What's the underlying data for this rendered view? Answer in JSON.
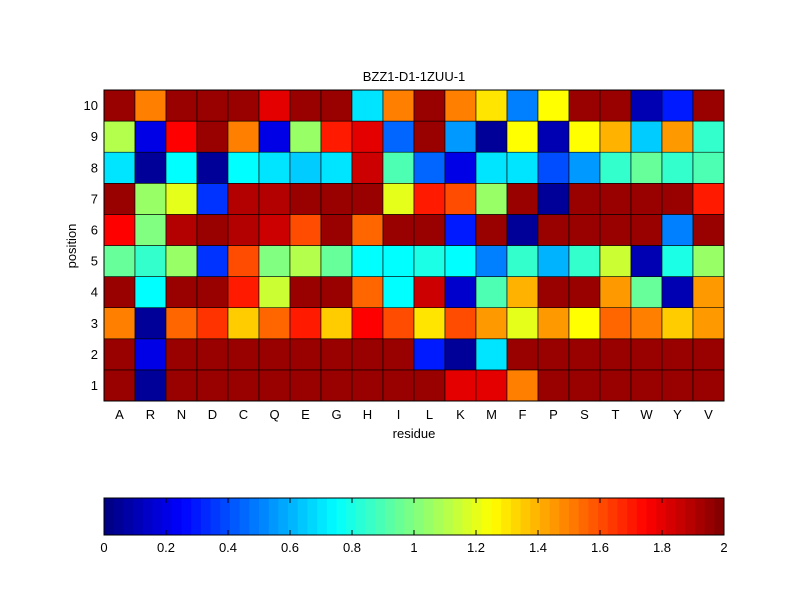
{
  "chart_data": {
    "type": "heatmap",
    "title": "BZZ1-D1-1ZUU-1",
    "xlabel": "residue",
    "ylabel": "position",
    "x_categories": [
      "A",
      "R",
      "N",
      "D",
      "C",
      "Q",
      "E",
      "G",
      "H",
      "I",
      "L",
      "K",
      "M",
      "F",
      "P",
      "S",
      "T",
      "W",
      "Y",
      "V"
    ],
    "y_categories": [
      "1",
      "2",
      "3",
      "4",
      "5",
      "6",
      "7",
      "8",
      "9",
      "10"
    ],
    "colorscale": "jet",
    "clim": [
      0,
      2
    ],
    "colorbar_ticks": [
      "0",
      "0.2",
      "0.4",
      "0.6",
      "0.8",
      "1",
      "1.2",
      "1.4",
      "1.6",
      "1.8",
      "2"
    ],
    "colorbar_position": "bottom",
    "grid": true,
    "values": [
      [
        1.95,
        0.05,
        1.95,
        1.95,
        1.95,
        1.95,
        1.95,
        1.95,
        1.95,
        1.95,
        1.95,
        1.8,
        1.8,
        1.5,
        1.95,
        1.95,
        1.95,
        1.95,
        1.95,
        1.95
      ],
      [
        1.95,
        0.2,
        1.95,
        1.95,
        1.95,
        1.95,
        1.95,
        1.95,
        1.95,
        1.95,
        0.3,
        0.05,
        0.7,
        1.95,
        1.95,
        1.95,
        1.95,
        1.95,
        1.95,
        1.95
      ],
      [
        1.5,
        0.05,
        1.55,
        1.65,
        1.35,
        1.55,
        1.7,
        1.35,
        1.75,
        1.6,
        1.3,
        1.6,
        1.45,
        1.2,
        1.45,
        1.25,
        1.55,
        1.5,
        1.35,
        1.45
      ],
      [
        1.95,
        0.75,
        1.95,
        1.95,
        1.7,
        1.15,
        1.95,
        1.95,
        1.55,
        0.75,
        1.85,
        0.15,
        0.9,
        1.4,
        1.95,
        1.95,
        1.45,
        0.95,
        0.1,
        1.45
      ],
      [
        0.95,
        0.85,
        1.05,
        0.35,
        1.6,
        1.0,
        1.1,
        0.95,
        0.75,
        0.75,
        0.8,
        0.75,
        0.5,
        0.85,
        0.6,
        0.85,
        1.15,
        0.1,
        0.8,
        1.05
      ],
      [
        1.75,
        1.0,
        1.9,
        1.95,
        1.9,
        1.85,
        1.6,
        1.95,
        1.55,
        1.95,
        1.95,
        0.3,
        1.95,
        0.05,
        1.95,
        1.95,
        1.95,
        1.95,
        0.5,
        1.95
      ],
      [
        1.95,
        1.05,
        1.2,
        0.35,
        1.9,
        1.9,
        1.95,
        1.95,
        1.95,
        1.2,
        1.7,
        1.6,
        1.05,
        1.95,
        0.05,
        1.95,
        1.95,
        1.95,
        1.95,
        1.7
      ],
      [
        0.7,
        0.05,
        0.75,
        0.05,
        0.75,
        0.7,
        0.65,
        0.7,
        1.85,
        0.9,
        0.45,
        0.2,
        0.7,
        0.7,
        0.4,
        0.55,
        0.85,
        0.95,
        0.85,
        0.9
      ],
      [
        1.1,
        0.2,
        1.75,
        1.95,
        1.5,
        0.2,
        1.05,
        1.7,
        1.8,
        0.45,
        1.95,
        0.55,
        0.05,
        1.25,
        0.1,
        1.25,
        1.4,
        0.65,
        1.45,
        0.85
      ],
      [
        1.95,
        1.5,
        1.95,
        1.95,
        1.95,
        1.8,
        1.95,
        1.95,
        0.7,
        1.5,
        1.95,
        1.5,
        1.3,
        0.5,
        1.25,
        1.95,
        1.95,
        0.1,
        0.3,
        1.95
      ]
    ]
  }
}
